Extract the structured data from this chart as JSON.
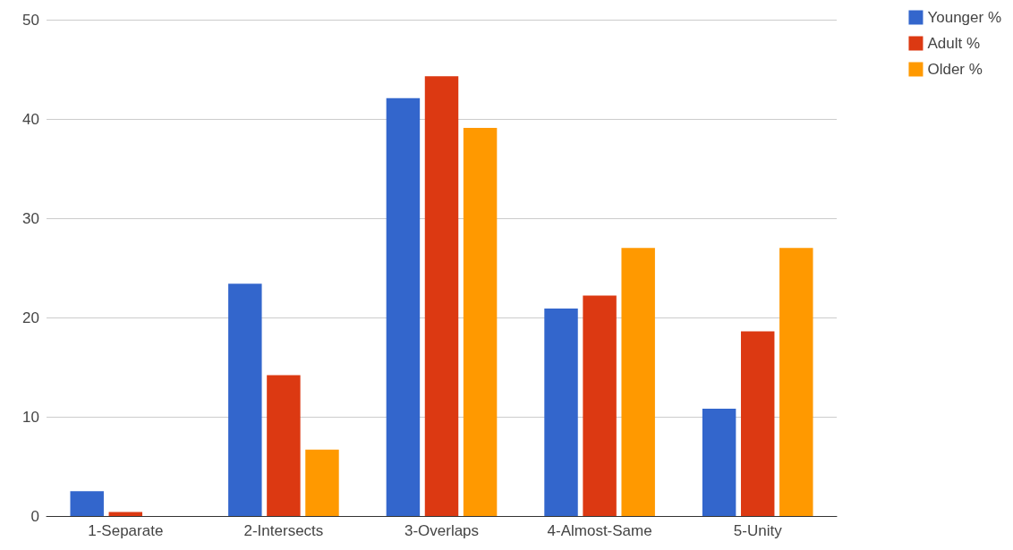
{
  "chart_data": {
    "type": "bar",
    "categories": [
      "1-Separate",
      "2-Intersects",
      "3-Overlaps",
      "4-Almost-Same",
      "5-Unity"
    ],
    "series": [
      {
        "name": "Younger %",
        "color": "#3366cc",
        "values": [
          2.5,
          23.4,
          42.1,
          20.9,
          10.8
        ]
      },
      {
        "name": "Adult %",
        "color": "#dc3912",
        "values": [
          0.4,
          14.2,
          44.3,
          22.2,
          18.6
        ]
      },
      {
        "name": "Older %",
        "color": "#ff9900",
        "values": [
          0,
          6.7,
          39.1,
          27.0,
          27.0
        ]
      }
    ],
    "ylim": [
      0,
      50
    ],
    "yticks": [
      0,
      10,
      20,
      30,
      40,
      50
    ],
    "grid": "y",
    "legend": "top right"
  }
}
